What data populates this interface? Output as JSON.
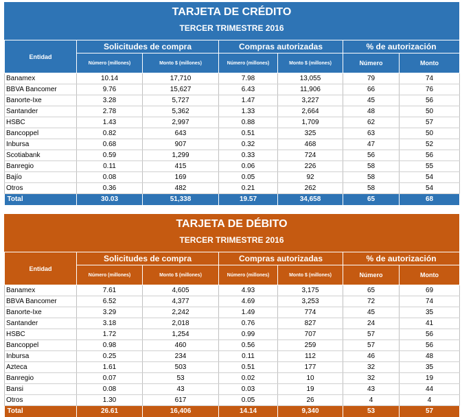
{
  "colors": {
    "credit_header": "#2e74b5",
    "debit_header": "#c55a11"
  },
  "headers": {
    "entity": "Entidad",
    "requests": "Solicitudes de compra",
    "authorized": "Compras autorizadas",
    "pct": "% de autorización",
    "number_millions": "Número (millones)",
    "amount_millions": "Monto $ (millones)",
    "number": "Número",
    "amount": "Monto"
  },
  "credit": {
    "title": "TARJETA DE CRÉDITO",
    "subtitle": "TERCER TRIMESTRE 2016",
    "rows": [
      [
        "Banamex",
        "10.14",
        "17,710",
        "7.98",
        "13,055",
        "79",
        "74"
      ],
      [
        "BBVA Bancomer",
        "9.76",
        "15,627",
        "6.43",
        "11,906",
        "66",
        "76"
      ],
      [
        "Banorte-Ixe",
        "3.28",
        "5,727",
        "1.47",
        "3,227",
        "45",
        "56"
      ],
      [
        "Santander",
        "2.78",
        "5,362",
        "1.33",
        "2,664",
        "48",
        "50"
      ],
      [
        "HSBC",
        "1.43",
        "2,997",
        "0.88",
        "1,709",
        "62",
        "57"
      ],
      [
        "Bancoppel",
        "0.82",
        "643",
        "0.51",
        "325",
        "63",
        "50"
      ],
      [
        "Inbursa",
        "0.68",
        "907",
        "0.32",
        "468",
        "47",
        "52"
      ],
      [
        "Scotiabank",
        "0.59",
        "1,299",
        "0.33",
        "724",
        "56",
        "56"
      ],
      [
        "Banregio",
        "0.11",
        "415",
        "0.06",
        "226",
        "58",
        "55"
      ],
      [
        "Bajío",
        "0.08",
        "169",
        "0.05",
        "92",
        "58",
        "54"
      ],
      [
        "Otros",
        "0.36",
        "482",
        "0.21",
        "262",
        "58",
        "54"
      ]
    ],
    "total": [
      "Total",
      "30.03",
      "51,338",
      "19.57",
      "34,658",
      "65",
      "68"
    ]
  },
  "debit": {
    "title": "TARJETA DE DÉBITO",
    "subtitle": "TERCER TRIMESTRE 2016",
    "rows": [
      [
        "Banamex",
        "7.61",
        "4,605",
        "4.93",
        "3,175",
        "65",
        "69"
      ],
      [
        "BBVA Bancomer",
        "6.52",
        "4,377",
        "4.69",
        "3,253",
        "72",
        "74"
      ],
      [
        "Banorte-Ixe",
        "3.29",
        "2,242",
        "1.49",
        "774",
        "45",
        "35"
      ],
      [
        "Santander",
        "3.18",
        "2,018",
        "0.76",
        "827",
        "24",
        "41"
      ],
      [
        "HSBC",
        "1.72",
        "1,254",
        "0.99",
        "707",
        "57",
        "56"
      ],
      [
        "Bancoppel",
        "0.98",
        "460",
        "0.56",
        "259",
        "57",
        "56"
      ],
      [
        "Inbursa",
        "0.25",
        "234",
        "0.11",
        "112",
        "46",
        "48"
      ],
      [
        "Azteca",
        "1.61",
        "503",
        "0.51",
        "177",
        "32",
        "35"
      ],
      [
        "Banregio",
        "0.07",
        "53",
        "0.02",
        "10",
        "32",
        "19"
      ],
      [
        "Bansi",
        "0.08",
        "43",
        "0.03",
        "19",
        "43",
        "44"
      ],
      [
        "Otros",
        "1.30",
        "617",
        "0.05",
        "26",
        "4",
        "4"
      ]
    ],
    "total": [
      "Total",
      "26.61",
      "16,406",
      "14.14",
      "9,340",
      "53",
      "57"
    ]
  }
}
